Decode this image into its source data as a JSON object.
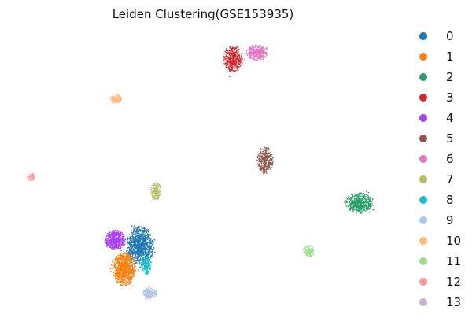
{
  "chart_data": {
    "type": "scatter",
    "title": "Leiden Clustering(GSE153935)",
    "xlabel": "",
    "ylabel": "",
    "axes_visible": false,
    "legend_position": "right",
    "clusters": [
      {
        "name": "0",
        "color": "#1f77b4",
        "center": [
          178,
          312
        ],
        "spread": [
          16,
          22
        ],
        "count": 900
      },
      {
        "name": "1",
        "color": "#ff7f0e",
        "center": [
          158,
          342
        ],
        "spread": [
          13,
          19
        ],
        "count": 800
      },
      {
        "name": "2",
        "color": "#279e68",
        "center": [
          457,
          258
        ],
        "spread": [
          16,
          12
        ],
        "count": 500
      },
      {
        "name": "3",
        "color": "#d62728",
        "center": [
          296,
          75
        ],
        "spread": [
          11,
          15
        ],
        "count": 400
      },
      {
        "name": "4",
        "color": "#aa40fc",
        "center": [
          146,
          305
        ],
        "spread": [
          12,
          11
        ],
        "count": 550
      },
      {
        "name": "5",
        "color": "#8c564b",
        "center": [
          337,
          204
        ],
        "spread": [
          9,
          15
        ],
        "count": 300
      },
      {
        "name": "6",
        "color": "#e377c2",
        "center": [
          327,
          67
        ],
        "spread": [
          12,
          9
        ],
        "count": 350
      },
      {
        "name": "7",
        "color": "#b5bd61",
        "center": [
          198,
          243
        ],
        "spread": [
          6,
          10
        ],
        "count": 160
      },
      {
        "name": "8",
        "color": "#17becf",
        "center": [
          186,
          337
        ],
        "spread": [
          6,
          11
        ],
        "count": 180
      },
      {
        "name": "9",
        "color": "#aec7e8",
        "center": [
          190,
          372
        ],
        "spread": [
          9,
          6
        ],
        "count": 180
      },
      {
        "name": "10",
        "color": "#ffbb78",
        "center": [
          148,
          126
        ],
        "spread": [
          7,
          5
        ],
        "count": 120
      },
      {
        "name": "11",
        "color": "#98df8a",
        "center": [
          392,
          319
        ],
        "spread": [
          6,
          7
        ],
        "count": 110
      },
      {
        "name": "12",
        "color": "#ff9896",
        "center": [
          40,
          225
        ],
        "spread": [
          5,
          4
        ],
        "count": 55
      },
      {
        "name": "13",
        "color": "#c5b0d5",
        "center": [
          188,
          378
        ],
        "spread": [
          4,
          3
        ],
        "count": 15
      }
    ]
  }
}
